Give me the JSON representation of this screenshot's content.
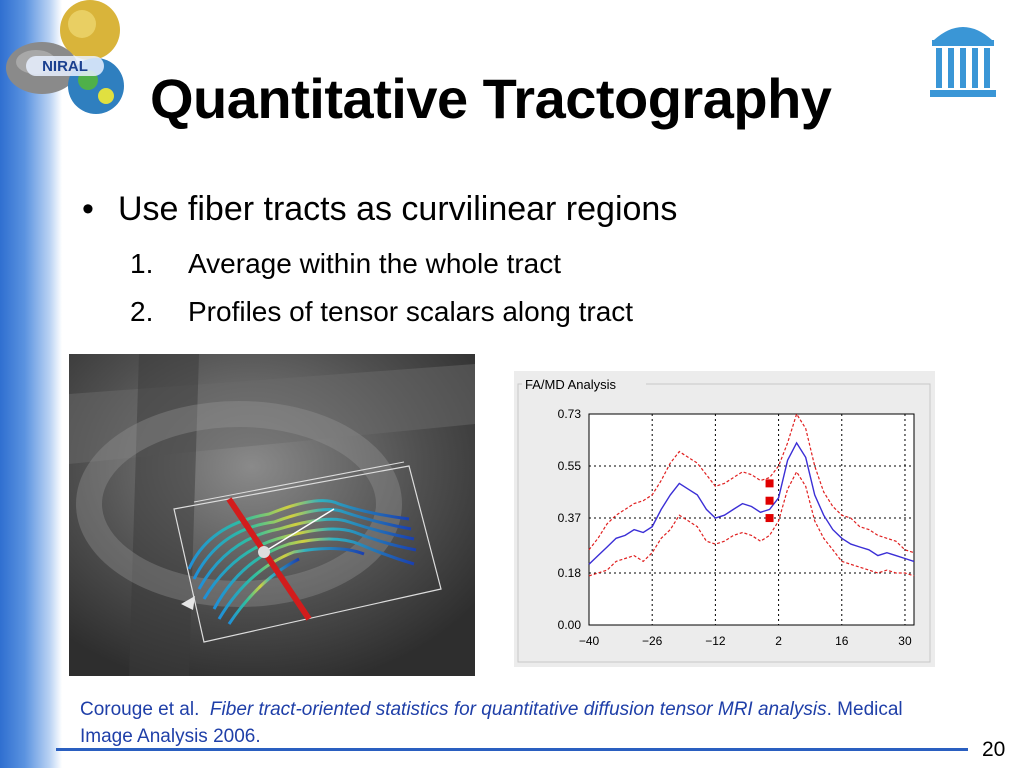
{
  "slide": {
    "title": "Quantitative Tractography",
    "bullet": "Use fiber tracts as curvilinear regions",
    "bullet_marker": "•",
    "sub_items": [
      {
        "number": "1.",
        "text": "Average within the whole tract"
      },
      {
        "number": "2.",
        "text": "Profiles of tensor scalars along tract"
      }
    ],
    "citation": {
      "authors": "Corouge et al.",
      "title": "Fiber tract-oriented statistics for quantitative diffusion tensor MRI analysis",
      "rest": ". Medical Image Analysis 2006."
    },
    "page_number": "20",
    "logo_text": "NIRAL"
  },
  "colors": {
    "accent_blue": "#2a5fc0",
    "citation_blue": "#1f3fa8",
    "mean_line": "#3b2fd6",
    "bound_line": "#e02020",
    "marker": "#e00000"
  },
  "chart_data": {
    "type": "line",
    "title": "FA/MD Analysis",
    "xlabel": "",
    "ylabel": "",
    "xlim": [
      -40,
      32
    ],
    "ylim": [
      0,
      0.73
    ],
    "x_ticks": [
      -40,
      -26,
      -12,
      2,
      16,
      30
    ],
    "x_tick_labels": [
      "−40",
      "−26",
      "−12",
      "2",
      "16",
      "30"
    ],
    "y_ticks": [
      0,
      0.18,
      0.37,
      0.55,
      0.73
    ],
    "y_tick_labels": [
      "0.00",
      "0.18",
      "0.37",
      "0.55",
      "0.73"
    ],
    "grid": true,
    "x": [
      -40,
      -38,
      -36,
      -34,
      -32,
      -30,
      -28,
      -26,
      -24,
      -22,
      -20,
      -18,
      -16,
      -14,
      -12,
      -10,
      -8,
      -6,
      -4,
      -2,
      0,
      2,
      4,
      6,
      8,
      10,
      12,
      14,
      16,
      18,
      20,
      22,
      24,
      26,
      28,
      30,
      32
    ],
    "series": [
      {
        "role": "mean",
        "values": [
          0.21,
          0.24,
          0.27,
          0.3,
          0.31,
          0.33,
          0.32,
          0.34,
          0.4,
          0.45,
          0.49,
          0.47,
          0.45,
          0.4,
          0.37,
          0.38,
          0.4,
          0.42,
          0.41,
          0.39,
          0.4,
          0.44,
          0.57,
          0.63,
          0.58,
          0.45,
          0.38,
          0.33,
          0.3,
          0.28,
          0.27,
          0.26,
          0.24,
          0.25,
          0.24,
          0.23,
          0.22
        ]
      },
      {
        "role": "upper",
        "values": [
          0.26,
          0.3,
          0.35,
          0.38,
          0.4,
          0.42,
          0.43,
          0.45,
          0.5,
          0.56,
          0.6,
          0.58,
          0.56,
          0.52,
          0.48,
          0.49,
          0.51,
          0.53,
          0.52,
          0.5,
          0.51,
          0.55,
          0.63,
          0.73,
          0.68,
          0.55,
          0.46,
          0.41,
          0.38,
          0.37,
          0.34,
          0.33,
          0.31,
          0.3,
          0.29,
          0.26,
          0.25
        ]
      },
      {
        "role": "lower",
        "values": [
          0.17,
          0.18,
          0.19,
          0.22,
          0.23,
          0.24,
          0.22,
          0.25,
          0.3,
          0.33,
          0.38,
          0.36,
          0.34,
          0.29,
          0.28,
          0.29,
          0.31,
          0.32,
          0.31,
          0.29,
          0.31,
          0.36,
          0.47,
          0.53,
          0.48,
          0.36,
          0.3,
          0.26,
          0.22,
          0.21,
          0.2,
          0.19,
          0.18,
          0.19,
          0.18,
          0.18,
          0.17
        ]
      }
    ],
    "markers": [
      {
        "x": 0,
        "y": 0.37
      },
      {
        "x": 0,
        "y": 0.43
      },
      {
        "x": 0,
        "y": 0.49
      }
    ]
  }
}
